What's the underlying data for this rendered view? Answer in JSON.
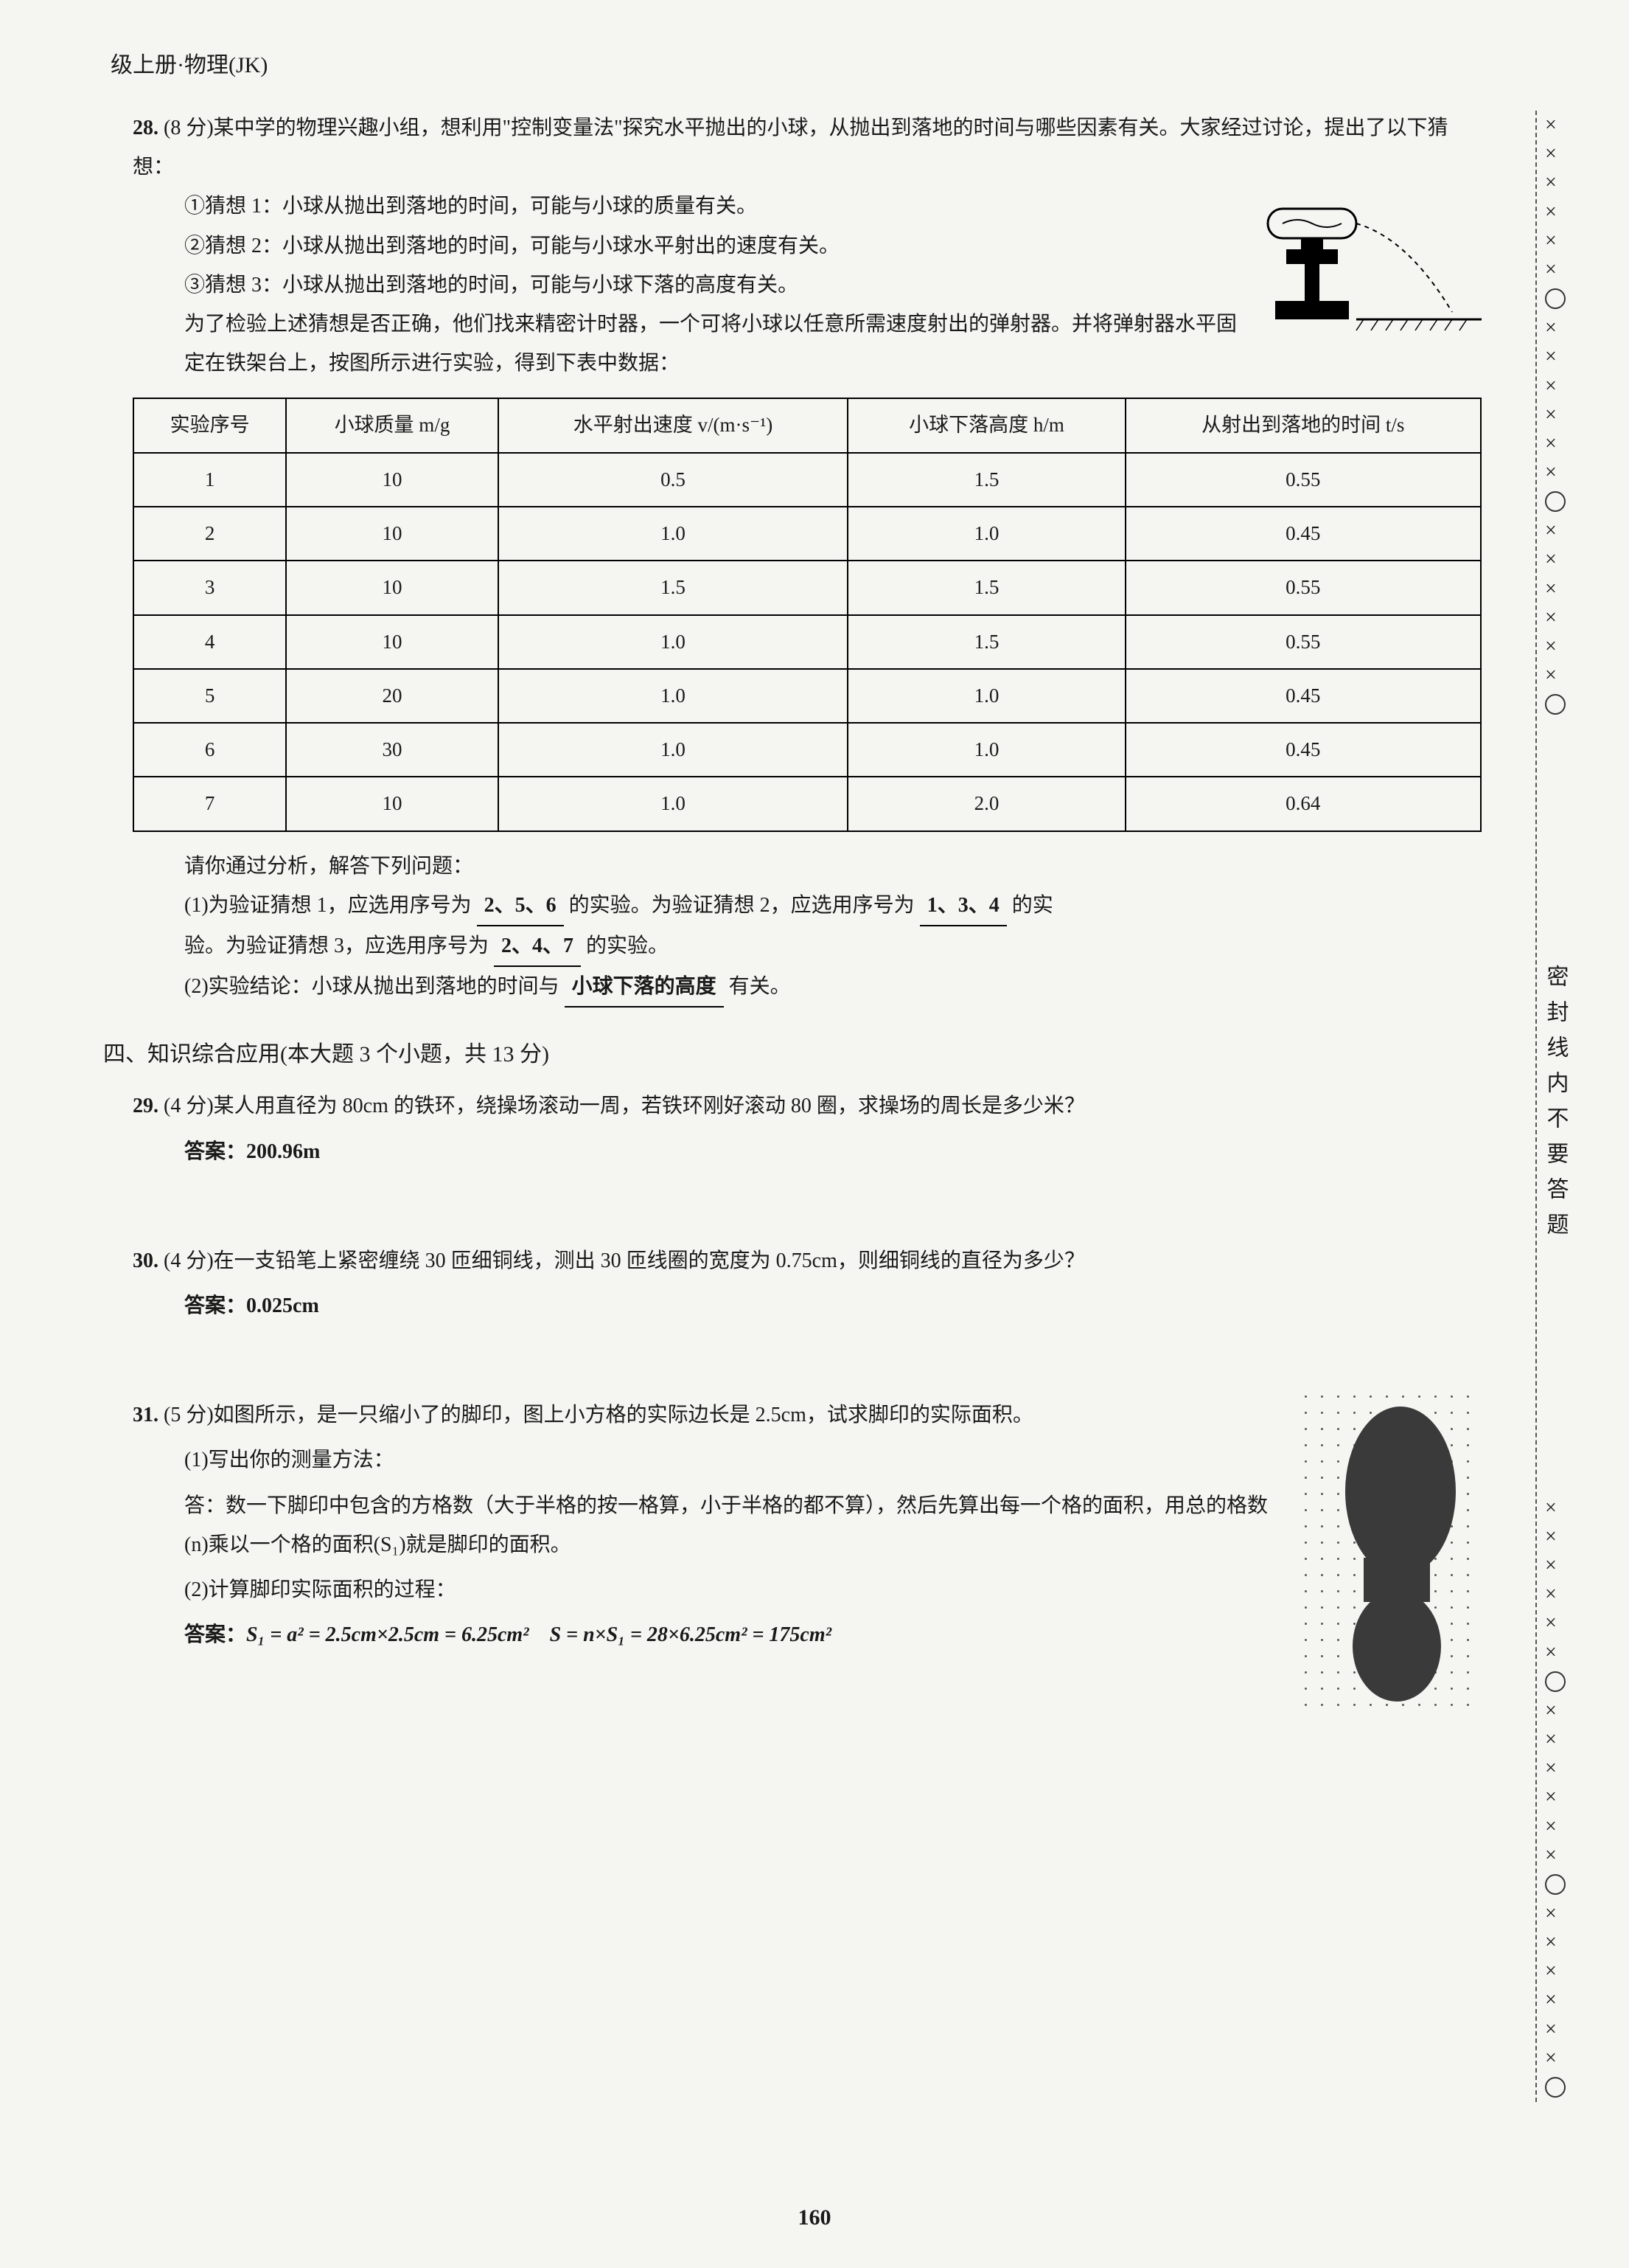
{
  "header": "级上册·物理(JK)",
  "q28": {
    "num": "28.",
    "points": "(8 分)",
    "intro": "某中学的物理兴趣小组，想利用\"控制变量法\"探究水平抛出的小球，从抛出到落地的时间与哪些因素有关。大家经过讨论，提出了以下猜想：",
    "guess1": "①猜想 1：小球从抛出到落地的时间，可能与小球的质量有关。",
    "guess2": "②猜想 2：小球从抛出到落地的时间，可能与小球水平射出的速度有关。",
    "guess3": "③猜想 3：小球从抛出到落地的时间，可能与小球下落的高度有关。",
    "setup": "为了检验上述猜想是否正确，他们找来精密计时器，一个可将小球以任意所需速度射出的弹射器。并将弹射器水平固定在铁架台上，按图所示进行实验，得到下表中数据：",
    "table": {
      "headers": [
        "实验序号",
        "小球质量 m/g",
        "水平射出速度 v/(m·s⁻¹)",
        "小球下落高度 h/m",
        "从射出到落地的时间 t/s"
      ],
      "rows": [
        [
          "1",
          "10",
          "0.5",
          "1.5",
          "0.55"
        ],
        [
          "2",
          "10",
          "1.0",
          "1.0",
          "0.45"
        ],
        [
          "3",
          "10",
          "1.5",
          "1.5",
          "0.55"
        ],
        [
          "4",
          "10",
          "1.0",
          "1.5",
          "0.55"
        ],
        [
          "5",
          "20",
          "1.0",
          "1.0",
          "0.45"
        ],
        [
          "6",
          "30",
          "1.0",
          "1.0",
          "0.45"
        ],
        [
          "7",
          "10",
          "1.0",
          "2.0",
          "0.64"
        ]
      ]
    },
    "analyze": "请你通过分析，解答下列问题：",
    "part1_a": "(1)为验证猜想 1，应选用序号为",
    "ans1": "2、5、6",
    "part1_b": "的实验。为验证猜想 2，应选用序号为",
    "ans2": "1、3、4",
    "part1_c": "的实验。为验证猜想 3，应选用序号为",
    "ans3": "2、4、7",
    "part1_d": "的实验。",
    "part2_a": "(2)实验结论：小球从抛出到落地的时间与",
    "ans4": "小球下落的高度",
    "part2_b": "有关。"
  },
  "section4": "四、知识综合应用(本大题 3 个小题，共 13 分)",
  "q29": {
    "num": "29.",
    "points": "(4 分)",
    "text": "某人用直径为 80cm 的铁环，绕操场滚动一周，若铁环刚好滚动 80 圈，求操场的周长是多少米？",
    "ans_label": "答案：",
    "ans": "200.96m"
  },
  "q30": {
    "num": "30.",
    "points": "(4 分)",
    "text": "在一支铅笔上紧密缠绕 30 匝细铜线，测出 30 匝线圈的宽度为 0.75cm，则细铜线的直径为多少？",
    "ans_label": "答案：",
    "ans": "0.025cm"
  },
  "q31": {
    "num": "31.",
    "points": "(5 分)",
    "text": "如图所示，是一只缩小了的脚印，图上小方格的实际边长是 2.5cm，试求脚印的实际面积。",
    "p1": "(1)写出你的测量方法：",
    "p1ans": "答：数一下脚印中包含的方格数（大于半格的按一格算，小于半格的都不算），然后先算出每一个格的面积，用总的格数(n)乘以一个格的面积(S₁)就是脚印的面积。",
    "p2": "(2)计算脚印实际面积的过程：",
    "p2ans_label": "答案：",
    "p2ans": "S₁ = a² = 2.5cm×2.5cm = 6.25cm²　S = n×S₁ = 28×6.25cm² = 175cm²"
  },
  "sealText": "密封线内不要答题",
  "pageNum": "160"
}
